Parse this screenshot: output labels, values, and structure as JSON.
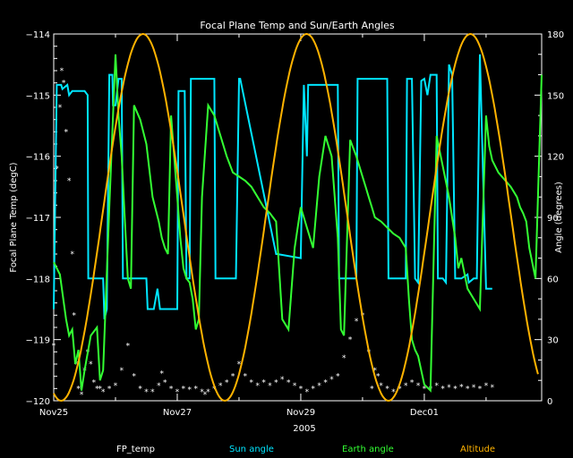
{
  "chart_data": {
    "type": "line",
    "title": "Focal Plane Temp and Sun/Earth Angles",
    "xlabel": "2005",
    "ylabel_left": "Focal Plane Temp (degC)",
    "ylabel_right": "Angle (degrees)",
    "xlim": [
      0,
      7.9
    ],
    "ylim_left": [
      -120,
      -114
    ],
    "ylim_right": [
      0,
      180
    ],
    "x_ticks": [
      {
        "value": 0,
        "label": "Nov25"
      },
      {
        "value": 2,
        "label": "Nov27"
      },
      {
        "value": 4,
        "label": "Nov29"
      },
      {
        "value": 6,
        "label": "Dec01"
      }
    ],
    "y_ticks_left": [
      -120,
      -119,
      -118,
      -117,
      -116,
      -115,
      -114
    ],
    "y_tick_labels_left": [
      "−120",
      "−119",
      "−118",
      "−117",
      "−116",
      "−115",
      "−114"
    ],
    "y_ticks_right": [
      0,
      30,
      60,
      90,
      120,
      150,
      180
    ],
    "legend_position": "bottom",
    "grid": false,
    "series": [
      {
        "name": "FP_temp",
        "axis": "left",
        "style": "points",
        "color": "#ffffff",
        "x": [
          0.0,
          0.05,
          0.1,
          0.13,
          0.16,
          0.2,
          0.25,
          0.3,
          0.33,
          0.36,
          0.4,
          0.45,
          0.5,
          0.55,
          0.6,
          0.65,
          0.7,
          0.75,
          0.8,
          0.9,
          1.0,
          1.1,
          1.2,
          1.3,
          1.4,
          1.5,
          1.6,
          1.7,
          1.75,
          1.8,
          1.9,
          2.0,
          2.1,
          2.2,
          2.3,
          2.4,
          2.45,
          2.5,
          2.6,
          2.7,
          2.8,
          2.9,
          3.0,
          3.1,
          3.2,
          3.3,
          3.4,
          3.5,
          3.6,
          3.7,
          3.8,
          3.9,
          4.0,
          4.1,
          4.2,
          4.3,
          4.4,
          4.5,
          4.6,
          4.7,
          4.8,
          4.9,
          5.0,
          5.1,
          5.15,
          5.2,
          5.25,
          5.3,
          5.4,
          5.5,
          5.6,
          5.7,
          5.8,
          5.9,
          6.0,
          6.1,
          6.2,
          6.3,
          6.4,
          6.5,
          6.6,
          6.7,
          6.8,
          6.9,
          7.0,
          7.1
        ],
        "y": [
          -119.1,
          -116.2,
          -115.2,
          -114.6,
          -114.8,
          -115.6,
          -116.4,
          -117.6,
          -118.6,
          -119.4,
          -119.8,
          -119.9,
          -119.5,
          -119.2,
          -119.4,
          -119.7,
          -119.8,
          -119.8,
          -119.85,
          -119.8,
          -119.75,
          -119.5,
          -119.1,
          -119.6,
          -119.8,
          -119.85,
          -119.85,
          -119.75,
          -119.55,
          -119.7,
          -119.8,
          -119.85,
          -119.8,
          -119.82,
          -119.8,
          -119.85,
          -119.9,
          -119.85,
          -119.8,
          -119.75,
          -119.7,
          -119.6,
          -119.4,
          -119.6,
          -119.7,
          -119.75,
          -119.7,
          -119.75,
          -119.7,
          -119.65,
          -119.7,
          -119.75,
          -119.8,
          -119.85,
          -119.8,
          -119.75,
          -119.7,
          -119.65,
          -119.6,
          -119.3,
          -119.0,
          -118.7,
          -118.6,
          -119.2,
          -119.8,
          -119.5,
          -119.6,
          -119.75,
          -119.8,
          -119.85,
          -119.8,
          -119.75,
          -119.7,
          -119.75,
          -119.8,
          -119.8,
          -119.75,
          -119.8,
          -119.78,
          -119.8,
          -119.77,
          -119.8,
          -119.78,
          -119.8,
          -119.75,
          -119.78
        ]
      },
      {
        "name": "Sun angle",
        "axis": "right",
        "style": "line",
        "color": "#00e6ff",
        "x": [
          0.0,
          0.05,
          0.08,
          0.12,
          0.14,
          0.22,
          0.25,
          0.3,
          0.5,
          0.55,
          0.56,
          0.8,
          0.82,
          0.86,
          0.9,
          0.95,
          0.96,
          1.0,
          1.05,
          1.1,
          1.12,
          1.5,
          1.52,
          1.58,
          1.62,
          1.68,
          1.72,
          2.0,
          2.02,
          2.12,
          2.15,
          2.2,
          2.22,
          2.6,
          2.62,
          2.95,
          3.0,
          3.02,
          3.6,
          3.62,
          4.0,
          4.05,
          4.1,
          4.12,
          4.6,
          4.62,
          4.9,
          4.92,
          5.4,
          5.42,
          5.7,
          5.72,
          5.8,
          5.85,
          5.9,
          5.95,
          6.0,
          6.05,
          6.1,
          6.2,
          6.22,
          6.3,
          6.35,
          6.4,
          6.45,
          6.5,
          6.52,
          6.6,
          6.7,
          6.72,
          6.8,
          6.85,
          6.9,
          7.0,
          7.05,
          7.1
        ],
        "y": [
          45,
          155,
          155,
          155,
          153,
          155,
          150,
          152,
          152,
          150,
          60,
          60,
          40,
          45,
          160,
          160,
          145,
          145,
          158,
          158,
          60,
          60,
          45,
          45,
          45,
          55,
          45,
          45,
          152,
          152,
          60,
          60,
          158,
          158,
          60,
          60,
          158,
          158,
          72,
          72,
          70,
          155,
          120,
          155,
          155,
          60,
          60,
          158,
          158,
          60,
          60,
          158,
          158,
          60,
          58,
          157,
          158,
          150,
          160,
          160,
          60,
          60,
          58,
          165,
          160,
          60,
          60,
          60,
          62,
          58,
          60,
          60,
          170,
          55,
          55,
          55
        ]
      },
      {
        "name": "Earth angle",
        "axis": "right",
        "style": "line",
        "color": "#33ff33",
        "x": [
          0.0,
          0.1,
          0.2,
          0.25,
          0.3,
          0.35,
          0.4,
          0.45,
          0.5,
          0.6,
          0.7,
          0.75,
          0.8,
          0.9,
          1.0,
          1.05,
          1.1,
          1.15,
          1.2,
          1.25,
          1.3,
          1.4,
          1.5,
          1.6,
          1.7,
          1.75,
          1.8,
          1.85,
          1.9,
          1.95,
          2.0,
          2.05,
          2.1,
          2.15,
          2.2,
          2.25,
          2.3,
          2.35,
          2.4,
          2.5,
          2.6,
          2.7,
          2.8,
          2.9,
          3.0,
          3.1,
          3.2,
          3.3,
          3.4,
          3.5,
          3.6,
          3.7,
          3.8,
          3.9,
          4.0,
          4.05,
          4.1,
          4.15,
          4.2,
          4.3,
          4.4,
          4.5,
          4.6,
          4.65,
          4.7,
          4.8,
          4.9,
          5.0,
          5.05,
          5.1,
          5.15,
          5.2,
          5.3,
          5.4,
          5.5,
          5.6,
          5.7,
          5.75,
          5.8,
          5.85,
          5.9,
          6.0,
          6.1,
          6.2,
          6.3,
          6.4,
          6.5,
          6.55,
          6.6,
          6.7,
          6.8,
          6.9,
          7.0,
          7.05,
          7.1,
          7.2,
          7.4,
          7.5,
          7.55,
          7.6,
          7.65,
          7.7,
          7.8,
          7.9
        ],
        "y": [
          68,
          62,
          40,
          32,
          35,
          18,
          25,
          5,
          15,
          32,
          36,
          10,
          15,
          95,
          170,
          140,
          120,
          90,
          60,
          55,
          145,
          138,
          126,
          100,
          88,
          80,
          75,
          72,
          140,
          120,
          100,
          80,
          65,
          60,
          58,
          50,
          35,
          40,
          100,
          145,
          140,
          130,
          120,
          112,
          110,
          108,
          105,
          100,
          95,
          92,
          88,
          40,
          35,
          75,
          95,
          90,
          85,
          80,
          75,
          110,
          130,
          120,
          80,
          35,
          32,
          128,
          120,
          110,
          105,
          100,
          95,
          90,
          88,
          85,
          82,
          80,
          75,
          50,
          30,
          25,
          22,
          8,
          5,
          130,
          115,
          100,
          80,
          65,
          70,
          55,
          50,
          45,
          140,
          125,
          118,
          112,
          105,
          100,
          95,
          92,
          88,
          75,
          60,
          160
        ]
      },
      {
        "name": "Altitude",
        "axis": "right",
        "style": "line",
        "color": "#ffb300",
        "period_days": 2.65,
        "min": 0,
        "max": 180,
        "first_min_day": 0.12
      }
    ]
  }
}
